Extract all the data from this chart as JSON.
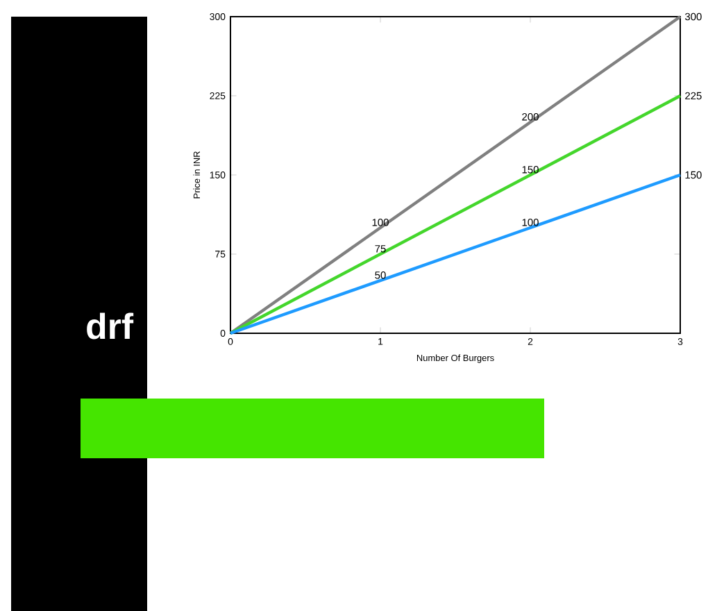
{
  "chart_data": {
    "type": "line",
    "xlabel": "Number Of Burgers",
    "ylabel": "Price in INR",
    "x": [
      0,
      1,
      2,
      3
    ],
    "series": [
      {
        "color": "#808080",
        "values": [
          0,
          100,
          200,
          300
        ],
        "value_labels": [
          null,
          "100",
          "200",
          "300"
        ]
      },
      {
        "color": "#44d62c",
        "values": [
          0,
          75,
          150,
          225
        ],
        "value_labels": [
          null,
          "75",
          "150",
          "225"
        ]
      },
      {
        "color": "#1e9bff",
        "values": [
          0,
          50,
          100,
          150
        ],
        "value_labels": [
          null,
          "50",
          "100",
          "150"
        ]
      }
    ],
    "xlim": [
      0,
      3
    ],
    "ylim": [
      0,
      300
    ],
    "xticks": [
      0,
      1,
      2,
      3
    ],
    "yticks": [
      0,
      75,
      150,
      225,
      300
    ],
    "grid": false,
    "marker": "none",
    "line_style": "solid",
    "annotations": [
      "drf"
    ]
  }
}
